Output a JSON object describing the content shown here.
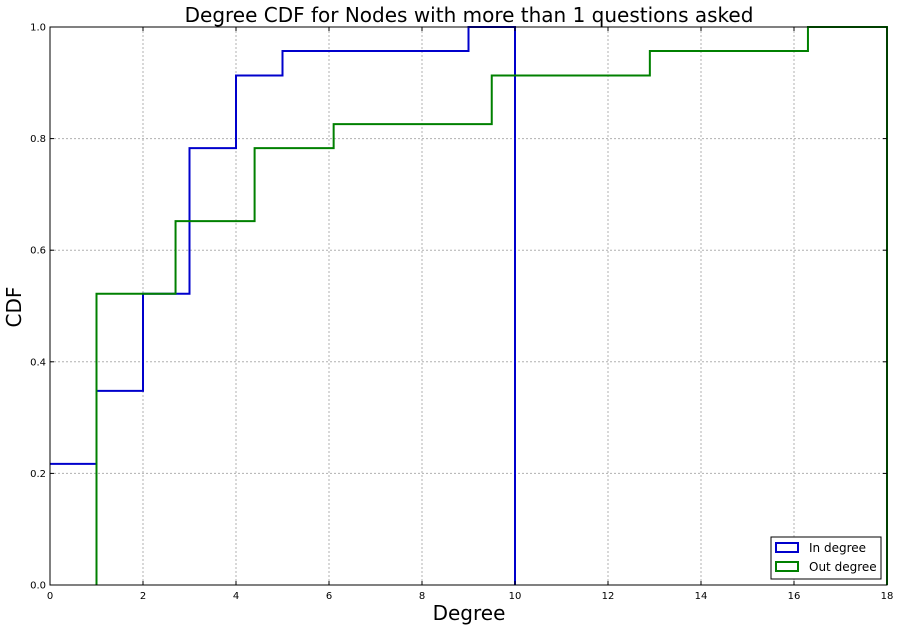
{
  "chart_data": {
    "type": "line",
    "title": "Degree CDF for Nodes with more than 1 questions asked",
    "xlabel": "Degree",
    "ylabel": "CDF",
    "xlim": [
      0,
      18
    ],
    "ylim": [
      0,
      1.0
    ],
    "xticks": [
      0,
      2,
      4,
      6,
      8,
      10,
      12,
      14,
      16,
      18
    ],
    "yticks": [
      0.0,
      0.2,
      0.4,
      0.6,
      0.8,
      1.0
    ],
    "grid": true,
    "legend_position": "bottom-right",
    "series": [
      {
        "name": "In degree",
        "color": "#0000cc",
        "style": "step",
        "points": [
          [
            0,
            0.217
          ],
          [
            1,
            0.217
          ],
          [
            1,
            0.348
          ],
          [
            2,
            0.348
          ],
          [
            2,
            0.522
          ],
          [
            3,
            0.522
          ],
          [
            3,
            0.783
          ],
          [
            4,
            0.783
          ],
          [
            4,
            0.913
          ],
          [
            5,
            0.913
          ],
          [
            5,
            0.957
          ],
          [
            9,
            0.957
          ],
          [
            9,
            1.0
          ],
          [
            10,
            1.0
          ],
          [
            10,
            0.0
          ]
        ]
      },
      {
        "name": "Out degree",
        "color": "#008000",
        "style": "step",
        "points": [
          [
            1,
            0.0
          ],
          [
            1,
            0.522
          ],
          [
            2.7,
            0.522
          ],
          [
            2.7,
            0.652
          ],
          [
            4.4,
            0.652
          ],
          [
            4.4,
            0.783
          ],
          [
            6.1,
            0.783
          ],
          [
            6.1,
            0.826
          ],
          [
            9.5,
            0.826
          ],
          [
            9.5,
            0.913
          ],
          [
            12.9,
            0.913
          ],
          [
            12.9,
            0.957
          ],
          [
            16.3,
            0.957
          ],
          [
            16.3,
            1.0
          ],
          [
            18,
            1.0
          ],
          [
            18,
            0.0
          ]
        ]
      }
    ]
  }
}
